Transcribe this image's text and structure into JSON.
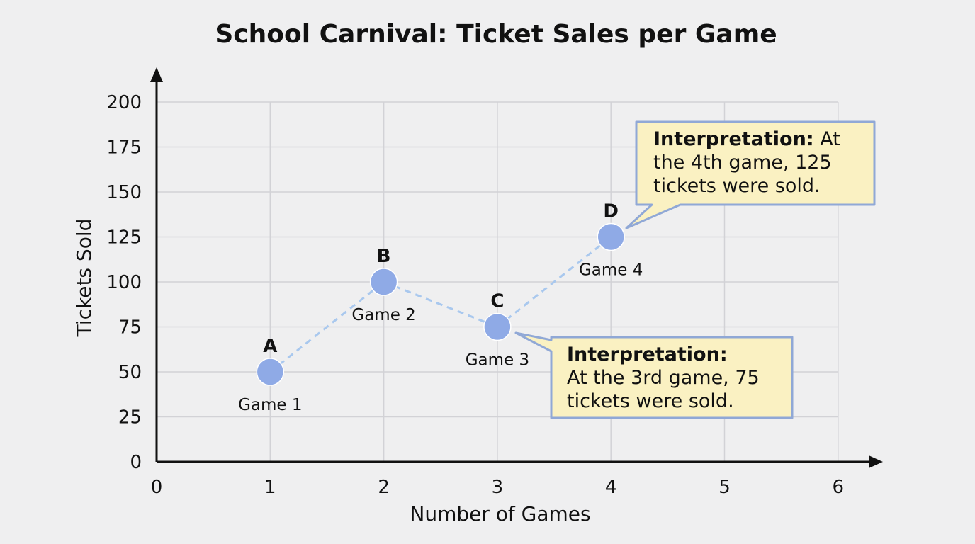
{
  "chart_data": {
    "type": "line",
    "title": "School Carnival: Ticket Sales per Game",
    "xlabel": "Number of Games",
    "ylabel": "Tickets Sold",
    "xlim": [
      0,
      6
    ],
    "ylim": [
      0,
      200
    ],
    "x_ticks": [
      "0",
      "1",
      "2",
      "3",
      "4",
      "5",
      "6"
    ],
    "y_ticks": [
      "0",
      "25",
      "50",
      "75",
      "100",
      "125",
      "150",
      "175",
      "200"
    ],
    "grid": true,
    "line_style": "dashed",
    "series": [
      {
        "points": [
          {
            "x": 1,
            "y": 50,
            "letter": "A",
            "label": "Game 1"
          },
          {
            "x": 2,
            "y": 100,
            "letter": "B",
            "label": "Game 2"
          },
          {
            "x": 3,
            "y": 75,
            "letter": "C",
            "label": "Game 3"
          },
          {
            "x": 4,
            "y": 125,
            "letter": "D",
            "label": "Game 4"
          }
        ]
      }
    ],
    "annotations": [
      {
        "target": "D",
        "heading": "Interpretation:",
        "lines": [
          "At",
          "the 4th game, 125",
          "tickets were sold."
        ]
      },
      {
        "target": "C",
        "heading": "Interpretation:",
        "lines": [
          "",
          "At the 3rd game, 75",
          "tickets were sold."
        ]
      }
    ]
  },
  "colors": {
    "point": "#8faae6",
    "line": "#a9c8ee",
    "grid": "#d2d2d6",
    "axis": "#111111",
    "callout_fill": "#faf1c2",
    "callout_border": "#90a8d6"
  }
}
